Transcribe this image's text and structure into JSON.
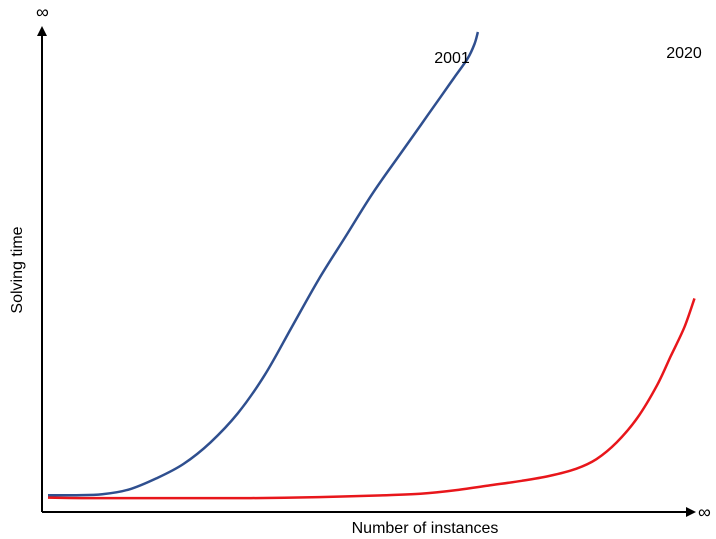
{
  "chart_data": {
    "type": "line",
    "title": "",
    "xlabel": "Number of instances",
    "ylabel": "Solving time",
    "x_end_label": "∞",
    "y_end_label": "∞",
    "xlim": [
      0,
      1
    ],
    "ylim": [
      0,
      1
    ],
    "grid": false,
    "legend": "none",
    "series": [
      {
        "name": "2001",
        "color": "#2f4f8f",
        "x": [
          0.0,
          0.04,
          0.08,
          0.12,
          0.16,
          0.2,
          0.24,
          0.28,
          0.32,
          0.36,
          0.4,
          0.44,
          0.48,
          0.52,
          0.55,
          0.58,
          0.6,
          0.62,
          0.63,
          0.635
        ],
        "y": [
          0.01,
          0.01,
          0.012,
          0.022,
          0.045,
          0.075,
          0.12,
          0.18,
          0.26,
          0.36,
          0.46,
          0.55,
          0.64,
          0.72,
          0.78,
          0.84,
          0.88,
          0.92,
          0.95,
          0.975
        ]
      },
      {
        "name": "2020",
        "color": "#e8161b",
        "x": [
          0.0,
          0.05,
          0.1,
          0.2,
          0.3,
          0.4,
          0.5,
          0.55,
          0.6,
          0.65,
          0.7,
          0.74,
          0.78,
          0.81,
          0.84,
          0.87,
          0.9,
          0.92,
          0.94,
          0.955
        ],
        "y": [
          0.005,
          0.004,
          0.004,
          0.004,
          0.004,
          0.006,
          0.01,
          0.013,
          0.02,
          0.03,
          0.04,
          0.05,
          0.065,
          0.085,
          0.12,
          0.17,
          0.24,
          0.3,
          0.36,
          0.42
        ]
      }
    ]
  }
}
